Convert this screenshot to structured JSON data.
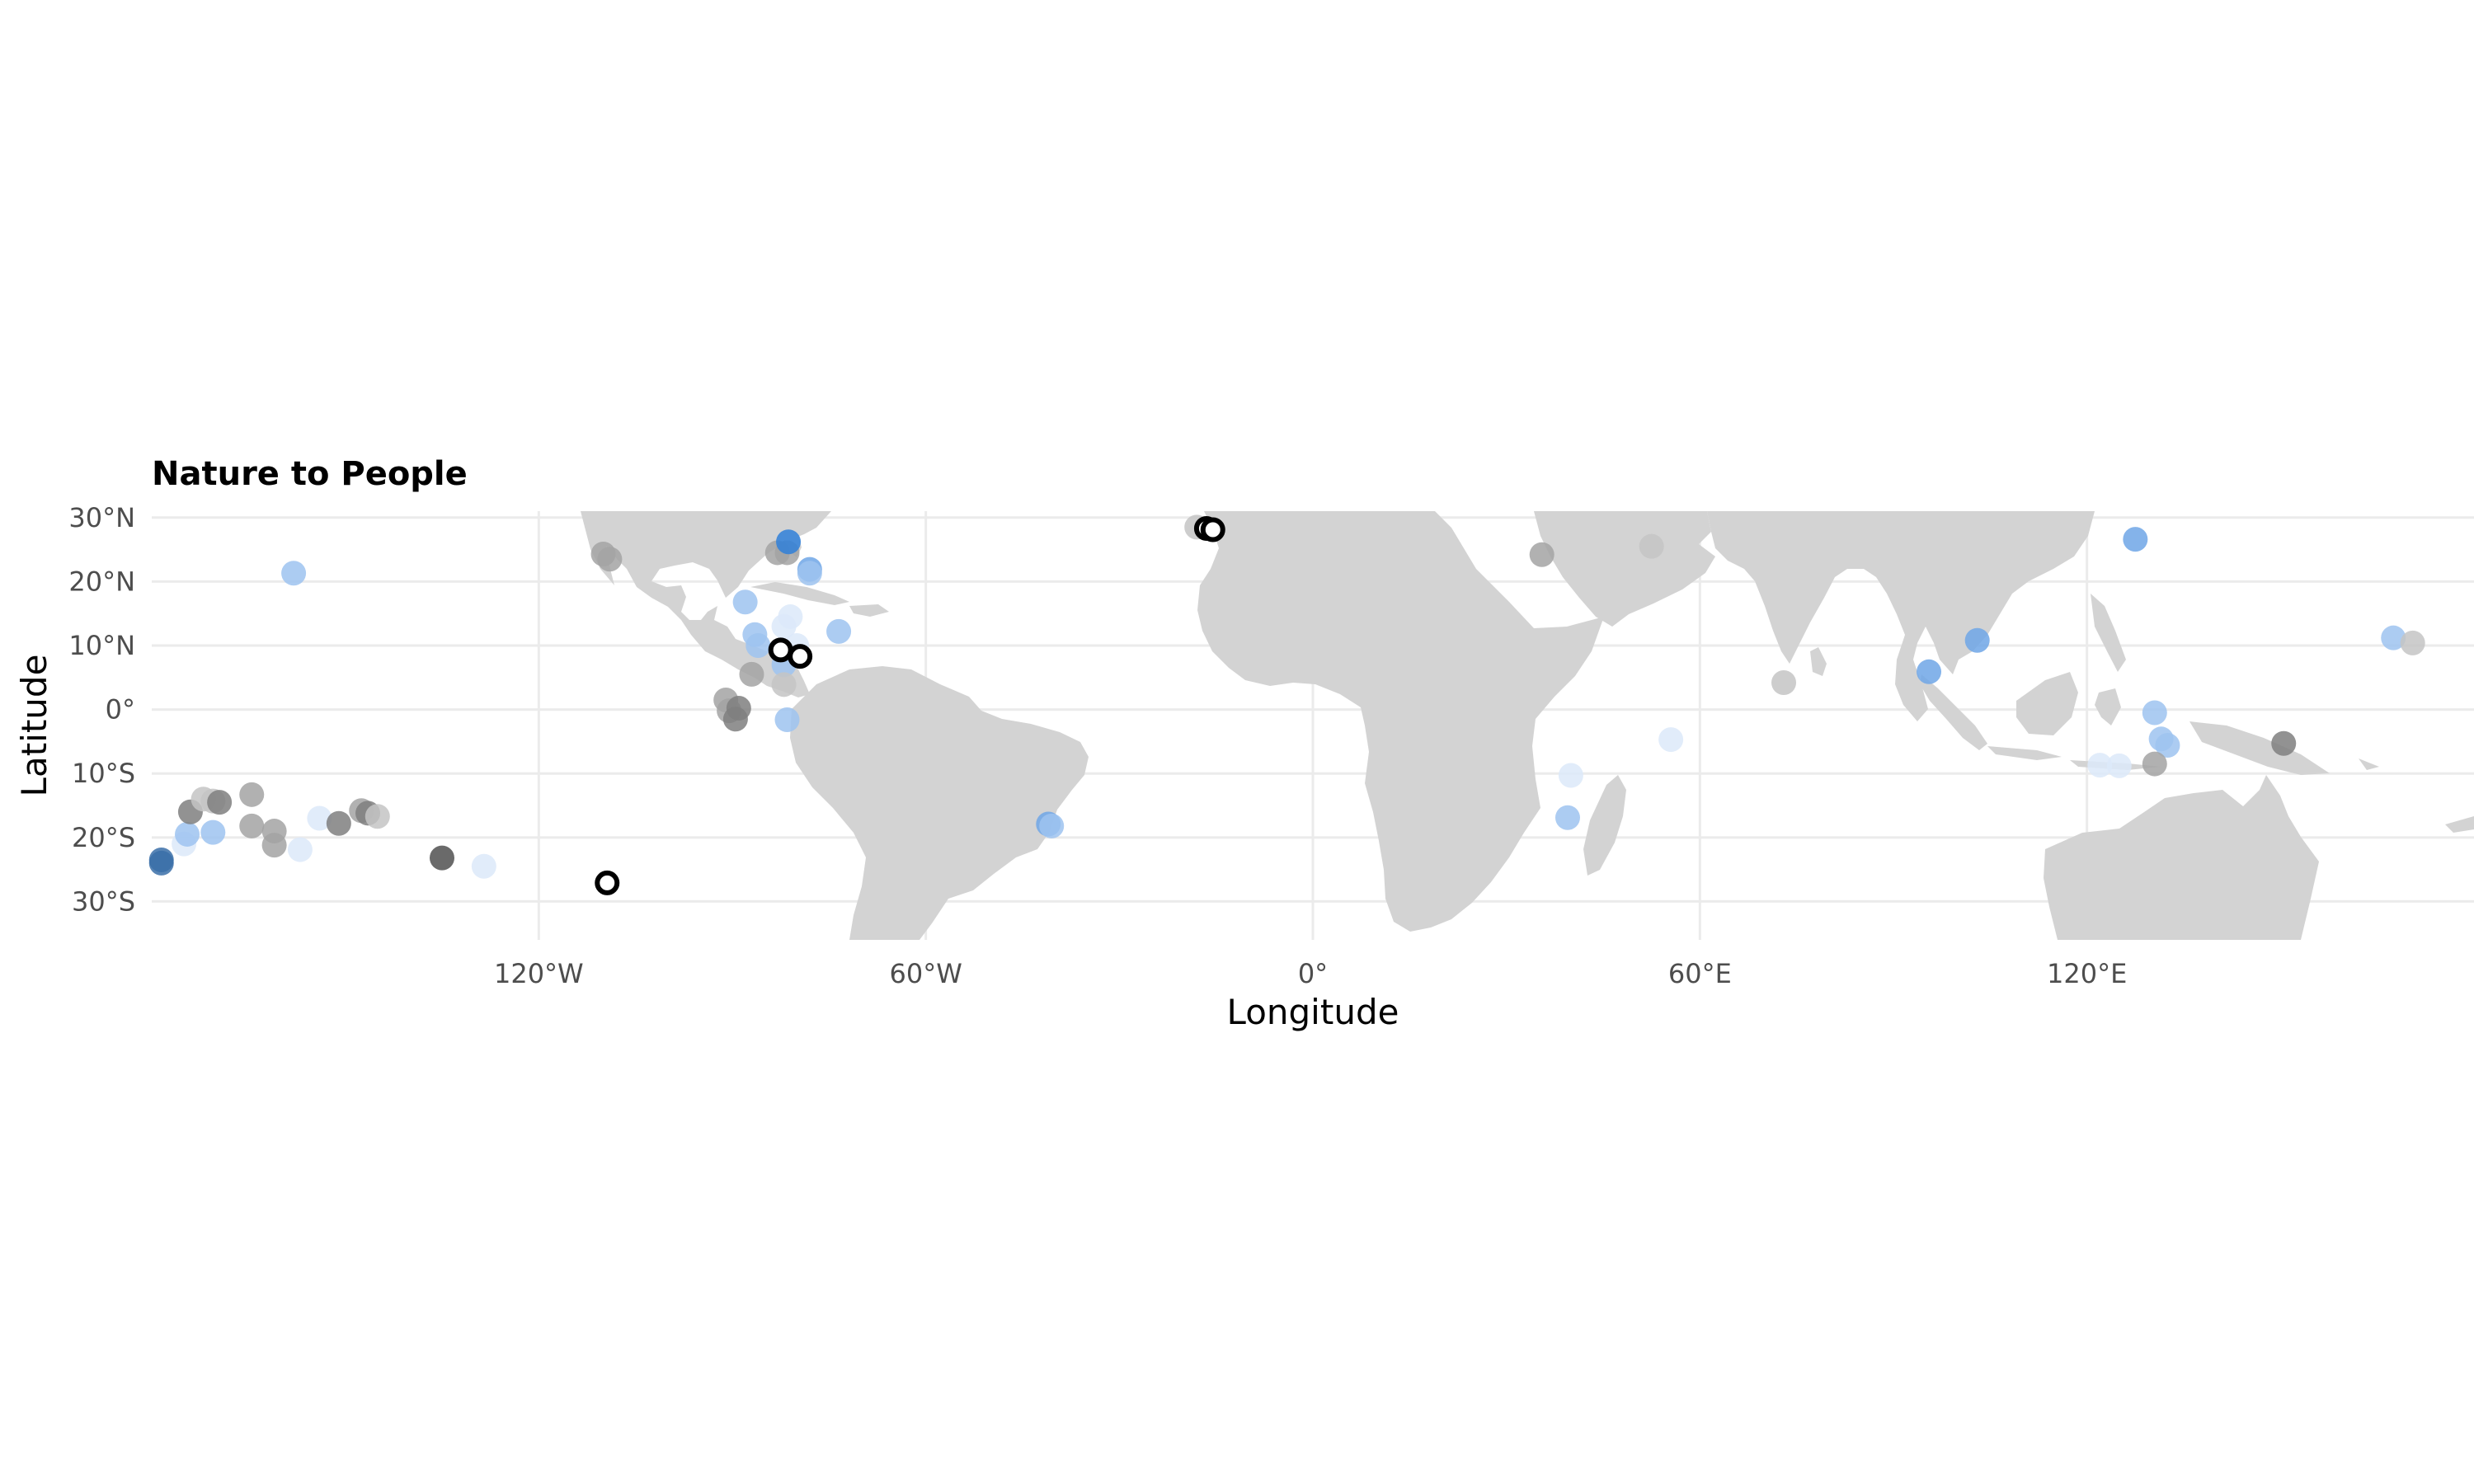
{
  "chart_data": {
    "type": "scatter",
    "title": "Nature to People",
    "xlabel": "Longitude",
    "ylabel": "Latitude",
    "xlim": [
      -180,
      180
    ],
    "ylim": [
      -36,
      31
    ],
    "x_ticks": [
      {
        "value": -120,
        "label": "120°W"
      },
      {
        "value": -60,
        "label": "60°W"
      },
      {
        "value": 0,
        "label": "0°"
      },
      {
        "value": 60,
        "label": "60°E"
      },
      {
        "value": 120,
        "label": "120°E"
      }
    ],
    "y_ticks": [
      {
        "value": 30,
        "label": "30°N"
      },
      {
        "value": 20,
        "label": "20°N"
      },
      {
        "value": 10,
        "label": "10°N"
      },
      {
        "value": 0,
        "label": "0°"
      },
      {
        "value": -10,
        "label": "10°S"
      },
      {
        "value": -20,
        "label": "20°S"
      },
      {
        "value": -30,
        "label": "30°S"
      }
    ],
    "grid": true,
    "land_color": "#d3d3d3",
    "point_colors": {
      "blue_light": "#dce9f9",
      "blue_mid": "#9ec3f0",
      "blue_strong": "#6ea6e6",
      "blue_deep": "#2f7fd8",
      "blue_dark": "#3a6ea8",
      "grey_light": "#c4c4c4",
      "grey_mid": "#a3a3a3",
      "grey_dark": "#7f7f7f",
      "grey_black": "#505050"
    },
    "points": [
      {
        "lon": -158,
        "lat": 21.3,
        "color": "blue_mid"
      },
      {
        "lon": -110,
        "lat": 24.3,
        "color": "grey_mid"
      },
      {
        "lon": -109,
        "lat": 23.5,
        "color": "grey_mid"
      },
      {
        "lon": -83,
        "lat": 24.5,
        "color": "grey_mid"
      },
      {
        "lon": -81.5,
        "lat": 24.5,
        "color": "grey_mid"
      },
      {
        "lon": -81.3,
        "lat": 26.2,
        "color": "blue_deep"
      },
      {
        "lon": -78,
        "lat": 21.9,
        "color": "blue_strong"
      },
      {
        "lon": -78,
        "lat": 21.3,
        "color": "blue_mid"
      },
      {
        "lon": -88,
        "lat": 16.8,
        "color": "blue_mid"
      },
      {
        "lon": -86.5,
        "lat": 11.7,
        "color": "blue_mid"
      },
      {
        "lon": -86,
        "lat": 10.0,
        "color": "blue_mid"
      },
      {
        "lon": -81,
        "lat": 14.5,
        "color": "blue_light"
      },
      {
        "lon": -82,
        "lat": 13.0,
        "color": "blue_light"
      },
      {
        "lon": -80,
        "lat": 10.0,
        "color": "blue_light"
      },
      {
        "lon": -82,
        "lat": 7.0,
        "color": "blue_mid"
      },
      {
        "lon": -73.5,
        "lat": 12.2,
        "color": "blue_mid"
      },
      {
        "lon": -87,
        "lat": 5.5,
        "color": "grey_mid"
      },
      {
        "lon": -82,
        "lat": 3.9,
        "color": "grey_light"
      },
      {
        "lon": -91,
        "lat": 1.5,
        "color": "grey_mid"
      },
      {
        "lon": -90.5,
        "lat": -0.2,
        "color": "grey_mid"
      },
      {
        "lon": -89,
        "lat": 0.2,
        "color": "grey_dark"
      },
      {
        "lon": -89.5,
        "lat": -1.5,
        "color": "grey_dark"
      },
      {
        "lon": -81.5,
        "lat": -1.6,
        "color": "blue_mid"
      },
      {
        "lon": -82.5,
        "lat": 9.3,
        "color": "ring"
      },
      {
        "lon": -79.5,
        "lat": 8.3,
        "color": "ring"
      },
      {
        "lon": -18,
        "lat": 28.5,
        "color": "grey_light"
      },
      {
        "lon": -16.5,
        "lat": 28.3,
        "color": "ring"
      },
      {
        "lon": -15.5,
        "lat": 28.1,
        "color": "ring"
      },
      {
        "lon": -41,
        "lat": -17.9,
        "color": "blue_strong"
      },
      {
        "lon": -40.5,
        "lat": -18.2,
        "color": "blue_mid"
      },
      {
        "lon": -109.4,
        "lat": -27.1,
        "color": "ring"
      },
      {
        "lon": -178.5,
        "lat": -23.5,
        "color": "blue_dark"
      },
      {
        "lon": -178.5,
        "lat": -24.0,
        "color": "blue_dark"
      },
      {
        "lon": -175,
        "lat": -21.0,
        "color": "blue_light"
      },
      {
        "lon": -174.5,
        "lat": -19.5,
        "color": "blue_mid"
      },
      {
        "lon": -174,
        "lat": -16.0,
        "color": "grey_dark"
      },
      {
        "lon": -172,
        "lat": -14.0,
        "color": "grey_light"
      },
      {
        "lon": -170.5,
        "lat": -14.3,
        "color": "grey_light"
      },
      {
        "lon": -169.5,
        "lat": -14.5,
        "color": "grey_dark"
      },
      {
        "lon": -170.5,
        "lat": -19.2,
        "color": "blue_mid"
      },
      {
        "lon": -164.5,
        "lat": -13.3,
        "color": "grey_mid"
      },
      {
        "lon": -164.5,
        "lat": -18.2,
        "color": "grey_mid"
      },
      {
        "lon": -161,
        "lat": -19.0,
        "color": "grey_mid"
      },
      {
        "lon": -161,
        "lat": -21.2,
        "color": "grey_mid"
      },
      {
        "lon": -157,
        "lat": -21.9,
        "color": "blue_light"
      },
      {
        "lon": -154,
        "lat": -17.0,
        "color": "blue_light"
      },
      {
        "lon": -151,
        "lat": -17.8,
        "color": "grey_dark"
      },
      {
        "lon": -147.5,
        "lat": -15.8,
        "color": "grey_mid"
      },
      {
        "lon": -146.5,
        "lat": -16.2,
        "color": "grey_dark"
      },
      {
        "lon": -145,
        "lat": -16.7,
        "color": "grey_light"
      },
      {
        "lon": -135,
        "lat": -23.2,
        "color": "grey_black"
      },
      {
        "lon": -128.5,
        "lat": -24.5,
        "color": "blue_light"
      },
      {
        "lon": 35.5,
        "lat": 24.2,
        "color": "grey_mid"
      },
      {
        "lon": 52.5,
        "lat": 25.5,
        "color": "grey_light"
      },
      {
        "lon": 73,
        "lat": 4.2,
        "color": "grey_light"
      },
      {
        "lon": 55.5,
        "lat": -4.7,
        "color": "blue_light"
      },
      {
        "lon": 40,
        "lat": -10.3,
        "color": "blue_light"
      },
      {
        "lon": 39.5,
        "lat": -16.9,
        "color": "blue_mid"
      },
      {
        "lon": 95.5,
        "lat": 5.9,
        "color": "blue_strong"
      },
      {
        "lon": 103,
        "lat": 10.8,
        "color": "blue_strong"
      },
      {
        "lon": 127.5,
        "lat": 26.6,
        "color": "blue_strong"
      },
      {
        "lon": 130.5,
        "lat": -0.5,
        "color": "blue_mid"
      },
      {
        "lon": 131.5,
        "lat": -4.6,
        "color": "blue_mid"
      },
      {
        "lon": 132.5,
        "lat": -5.6,
        "color": "blue_mid"
      },
      {
        "lon": 122,
        "lat": -8.7,
        "color": "blue_light"
      },
      {
        "lon": 125,
        "lat": -8.8,
        "color": "blue_light"
      },
      {
        "lon": 130.5,
        "lat": -8.5,
        "color": "grey_mid"
      },
      {
        "lon": 150.5,
        "lat": -5.3,
        "color": "grey_dark"
      },
      {
        "lon": 167.5,
        "lat": 11.2,
        "color": "blue_mid"
      },
      {
        "lon": 170.5,
        "lat": 10.4,
        "color": "grey_light"
      }
    ]
  }
}
